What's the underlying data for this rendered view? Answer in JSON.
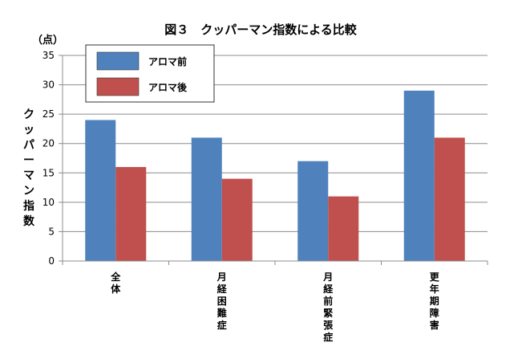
{
  "chart_data": {
    "type": "bar",
    "title": "図３　クッパーマン指数による比較",
    "unit": "（点）",
    "ylabel": "クッパーマン指数",
    "xlabel": "",
    "categories": [
      "全体",
      "月経困難症",
      "月経前緊張症",
      "更年期障害"
    ],
    "series": [
      {
        "name": "アロマ前",
        "values": [
          24,
          21,
          17,
          29
        ],
        "color": "#4F81BD"
      },
      {
        "name": "アロマ後",
        "values": [
          16,
          14,
          11,
          21
        ],
        "color": "#C0504D"
      }
    ],
    "ylim": [
      0,
      35
    ],
    "yticks": [
      0,
      5,
      10,
      15,
      20,
      25,
      30,
      35
    ],
    "grid": true,
    "legend": "top-left"
  }
}
